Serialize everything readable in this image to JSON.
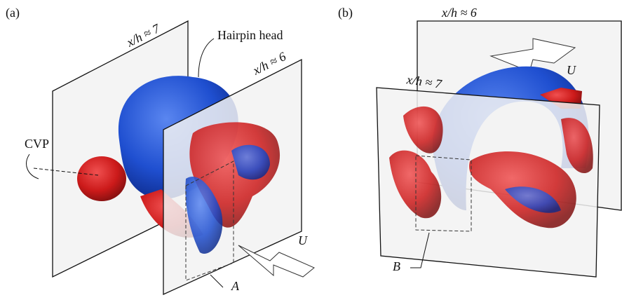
{
  "panels": [
    {
      "label": "(a)",
      "plane_back": "x/h ≈ 7",
      "plane_front": "x/h ≈ 6",
      "head_label": "Hairpin head",
      "cvp_label": "CVP",
      "flow_label": "U",
      "box_label": "A"
    },
    {
      "label": "(b)",
      "plane_back": "x/h ≈ 6",
      "plane_front": "x/h ≈ 7",
      "flow_label": "U",
      "box_label": "B"
    }
  ]
}
